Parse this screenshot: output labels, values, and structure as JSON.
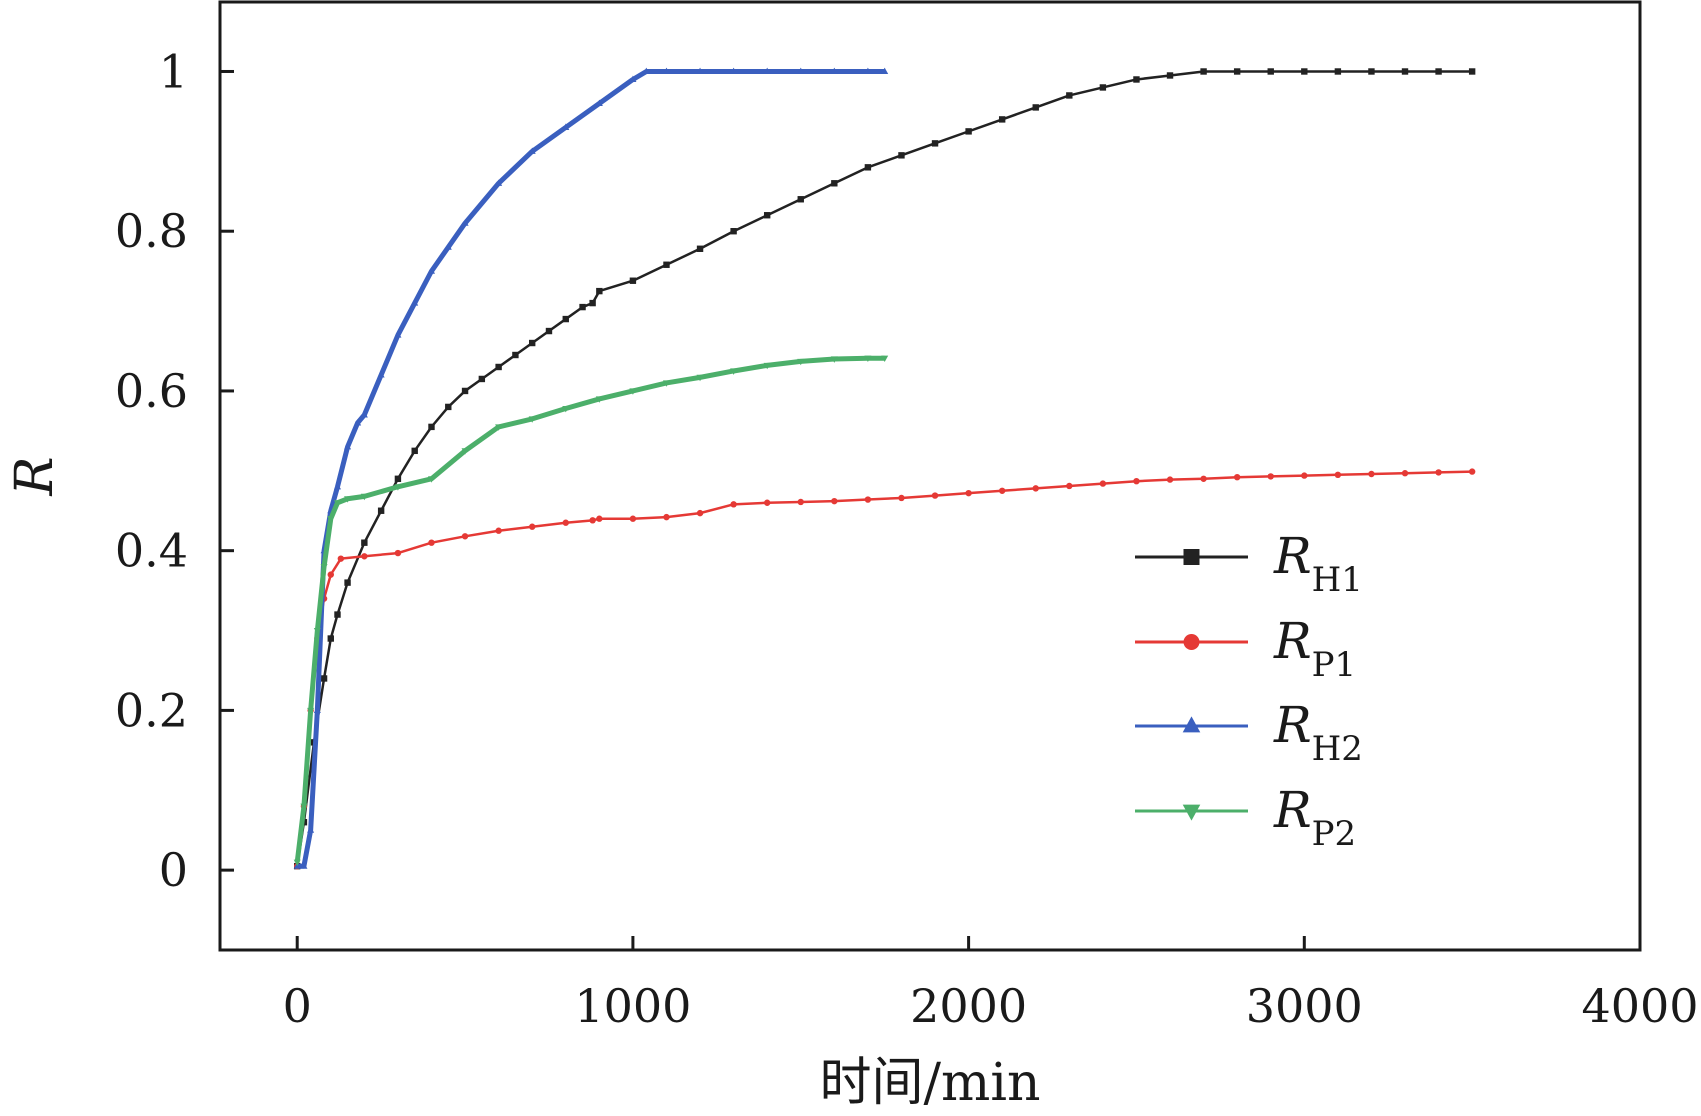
{
  "chart_data": {
    "type": "line",
    "title": "",
    "xlabel": "时间/min",
    "ylabel": "R",
    "xlim": [
      -230,
      4000
    ],
    "ylim": [
      -0.1,
      1.087
    ],
    "xticks": [
      0,
      1000,
      2000,
      3000,
      4000
    ],
    "yticks": [
      0,
      0.2,
      0.4,
      0.6,
      0.8,
      1
    ],
    "ytick_labels": [
      "0",
      "0.2",
      "0.4",
      "0.6",
      "0.8",
      "1"
    ],
    "grid": false,
    "legend_position": "lower-right",
    "series": [
      {
        "name": "R",
        "sub": "H1",
        "color": "#222222",
        "marker": "square",
        "x": [
          0,
          20,
          50,
          80,
          100,
          120,
          150,
          200,
          250,
          300,
          350,
          400,
          450,
          500,
          550,
          600,
          650,
          700,
          750,
          800,
          850,
          880,
          900,
          1000,
          1100,
          1200,
          1300,
          1400,
          1500,
          1600,
          1700,
          1800,
          1900,
          2000,
          2100,
          2200,
          2300,
          2400,
          2500,
          2600,
          2700,
          2800,
          2900,
          3000,
          3100,
          3200,
          3300,
          3400,
          3500
        ],
        "y": [
          0.005,
          0.06,
          0.16,
          0.24,
          0.29,
          0.32,
          0.36,
          0.41,
          0.45,
          0.49,
          0.525,
          0.555,
          0.58,
          0.6,
          0.615,
          0.63,
          0.645,
          0.66,
          0.675,
          0.69,
          0.705,
          0.71,
          0.725,
          0.738,
          0.758,
          0.778,
          0.8,
          0.82,
          0.84,
          0.86,
          0.88,
          0.895,
          0.91,
          0.925,
          0.94,
          0.955,
          0.97,
          0.98,
          0.99,
          0.995,
          1.0,
          1.0,
          1.0,
          1.0,
          1.0,
          1.0,
          1.0,
          1.0,
          1.0
        ]
      },
      {
        "name": "R",
        "sub": "P1",
        "color": "#e53935",
        "marker": "circle",
        "x": [
          0,
          20,
          40,
          60,
          80,
          100,
          130,
          200,
          300,
          400,
          500,
          600,
          700,
          800,
          880,
          900,
          1000,
          1100,
          1200,
          1300,
          1400,
          1500,
          1600,
          1700,
          1800,
          1900,
          2000,
          2100,
          2200,
          2300,
          2400,
          2500,
          2600,
          2700,
          2800,
          2900,
          3000,
          3100,
          3200,
          3300,
          3400,
          3500
        ],
        "y": [
          0.005,
          0.08,
          0.2,
          0.29,
          0.34,
          0.37,
          0.39,
          0.393,
          0.397,
          0.41,
          0.418,
          0.425,
          0.43,
          0.435,
          0.438,
          0.44,
          0.44,
          0.442,
          0.447,
          0.458,
          0.46,
          0.461,
          0.462,
          0.464,
          0.466,
          0.469,
          0.472,
          0.475,
          0.478,
          0.481,
          0.484,
          0.487,
          0.489,
          0.49,
          0.492,
          0.493,
          0.494,
          0.495,
          0.496,
          0.497,
          0.498,
          0.499
        ]
      },
      {
        "name": "R",
        "sub": "H2",
        "color": "#3a5fbf",
        "marker": "triangle-up",
        "x": [
          0,
          20,
          40,
          60,
          80,
          100,
          120,
          150,
          180,
          200,
          250,
          300,
          350,
          400,
          450,
          500,
          600,
          700,
          800,
          900,
          1000,
          1040,
          1100,
          1200,
          1300,
          1400,
          1500,
          1600,
          1700,
          1750
        ],
        "y": [
          0.005,
          0.005,
          0.05,
          0.2,
          0.4,
          0.45,
          0.48,
          0.53,
          0.56,
          0.57,
          0.62,
          0.67,
          0.71,
          0.75,
          0.78,
          0.81,
          0.86,
          0.9,
          0.93,
          0.96,
          0.99,
          1.0,
          1.0,
          1.0,
          1.0,
          1.0,
          1.0,
          1.0,
          1.0,
          1.0
        ]
      },
      {
        "name": "R",
        "sub": "P2",
        "color": "#4caf6a",
        "marker": "triangle-down",
        "x": [
          0,
          20,
          40,
          60,
          80,
          100,
          120,
          150,
          200,
          300,
          400,
          500,
          600,
          700,
          800,
          900,
          1000,
          1100,
          1200,
          1300,
          1400,
          1500,
          1600,
          1700,
          1750
        ],
        "y": [
          0.01,
          0.08,
          0.2,
          0.3,
          0.38,
          0.44,
          0.46,
          0.465,
          0.468,
          0.48,
          0.49,
          0.525,
          0.555,
          0.565,
          0.578,
          0.59,
          0.6,
          0.61,
          0.617,
          0.625,
          0.632,
          0.637,
          0.64,
          0.641,
          0.641
        ]
      }
    ]
  }
}
